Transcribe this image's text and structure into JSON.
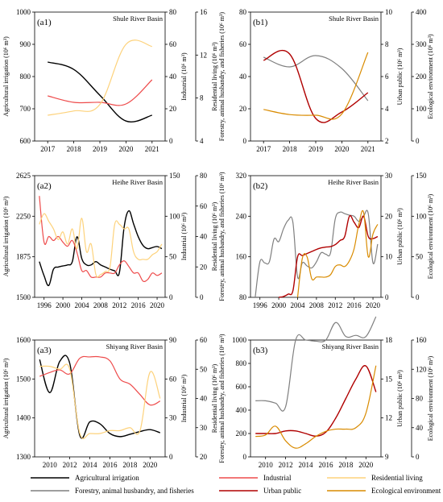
{
  "colors": {
    "agri": "#000000",
    "industrial": "#ee4b4b",
    "residential": "#fdd27b",
    "forestry": "#7f7f7f",
    "urban": "#b00000",
    "ecological": "#d98b00"
  },
  "legend": [
    {
      "key": "agri",
      "label": "Agricultural irrigation"
    },
    {
      "key": "industrial",
      "label": "Industrial"
    },
    {
      "key": "residential",
      "label": "Residential living"
    },
    {
      "key": "forestry",
      "label": "Forestry, animal husbandry, and fisheries"
    },
    {
      "key": "urban",
      "label": "Urban public"
    },
    {
      "key": "ecological",
      "label": "Ecological environment"
    }
  ],
  "chart_data": [
    {
      "id": "a1",
      "type": "line",
      "panel_label": "(a1)",
      "title": "Shule River Basin",
      "x": [
        2017,
        2018,
        2019,
        2020,
        2021
      ],
      "xlim": [
        2016.5,
        2021.5
      ],
      "xticks": [
        2017,
        2018,
        2019,
        2020,
        2021
      ],
      "axes": [
        {
          "id": "l1",
          "label": "Agricultural irrigation (10⁶ m³)",
          "ylim": [
            600,
            1000
          ],
          "ticks": [
            600,
            700,
            800,
            900,
            1000
          ]
        },
        {
          "id": "r1",
          "label": "Industrial (10⁶ m³)",
          "ylim": [
            0,
            80
          ],
          "ticks": [
            0,
            20,
            40,
            60,
            80
          ]
        },
        {
          "id": "r2",
          "label": "Residential living (10⁶ m³)",
          "ylim": [
            4,
            16
          ],
          "ticks": [
            4,
            8,
            12,
            16
          ]
        }
      ],
      "series": [
        {
          "key": "agri",
          "axis": "l1",
          "values": [
            845,
            822,
            742,
            662,
            680
          ]
        },
        {
          "key": "industrial",
          "axis": "r1",
          "values": [
            28,
            24,
            24,
            23,
            38
          ]
        },
        {
          "key": "residential",
          "axis": "r2",
          "values": [
            6.4,
            6.8,
            7.4,
            13.0,
            12.8
          ]
        }
      ]
    },
    {
      "id": "b1",
      "type": "line",
      "panel_label": "(b1)",
      "title": "Shule River Basin",
      "x": [
        2017,
        2018,
        2019,
        2020,
        2021
      ],
      "xlim": [
        2016.5,
        2021.5
      ],
      "xticks": [
        2017,
        2018,
        2019,
        2020,
        2021
      ],
      "axes": [
        {
          "id": "l1",
          "label": "Forestry, animal husbandry, and fisheries (10⁶ m³)",
          "ylim": [
            0,
            80
          ],
          "ticks": [
            0,
            20,
            40,
            60,
            80
          ]
        },
        {
          "id": "r1",
          "label": "Urban public (10⁶ m³)",
          "ylim": [
            2,
            10
          ],
          "ticks": [
            2,
            4,
            6,
            8,
            10
          ]
        },
        {
          "id": "r2",
          "label": "Ecological environment (10⁶ m³)",
          "ylim": [
            0,
            400
          ],
          "ticks": [
            0,
            100,
            200,
            300,
            400
          ]
        }
      ],
      "series": [
        {
          "key": "forestry",
          "axis": "l1",
          "values": [
            52,
            46,
            53,
            45,
            25
          ]
        },
        {
          "key": "urban",
          "axis": "r1",
          "values": [
            7.0,
            7.4,
            3.4,
            3.8,
            5.0
          ]
        },
        {
          "key": "ecological",
          "axis": "r2",
          "values": [
            98,
            82,
            80,
            84,
            275
          ]
        }
      ]
    },
    {
      "id": "a2",
      "type": "line",
      "panel_label": "(a2)",
      "title": "Heihe River Basin",
      "x": [
        1995,
        1996,
        1997,
        1998,
        1999,
        2000,
        2001,
        2002,
        2003,
        2004,
        2005,
        2006,
        2007,
        2008,
        2009,
        2010,
        2011,
        2012,
        2013,
        2014,
        2015,
        2016,
        2017,
        2018,
        2019,
        2020,
        2021
      ],
      "xlim": [
        1994,
        2021.7
      ],
      "xticks": [
        1996,
        2000,
        2004,
        2008,
        2012,
        2016,
        2020
      ],
      "axes": [
        {
          "id": "l1",
          "label": "Agricultural irrigation (10⁶ m³)",
          "ylim": [
            1500,
            2625
          ],
          "ticks": [
            1500,
            1875,
            2250,
            2625
          ]
        },
        {
          "id": "r1",
          "label": "Industrial (10⁶ m³)",
          "ylim": [
            0,
            150
          ],
          "ticks": [
            0,
            50,
            100,
            150
          ]
        },
        {
          "id": "r2",
          "label": "Residential living (10⁶ m³)",
          "ylim": [
            0,
            80
          ],
          "ticks": [
            0,
            20,
            40,
            60,
            80
          ]
        }
      ],
      "series": [
        {
          "key": "agri",
          "axis": "l1",
          "values": [
            1830,
            1700,
            1610,
            1760,
            1780,
            1790,
            1800,
            1830,
            2060,
            1860,
            1800,
            1800,
            1830,
            1800,
            1780,
            1760,
            1745,
            1730,
            2150,
            2300,
            2180,
            2060,
            1980,
            1950,
            1960,
            1970,
            1950
          ]
        },
        {
          "key": "industrial",
          "axis": "r1",
          "values": [
            125,
            68,
            75,
            70,
            75,
            68,
            63,
            70,
            55,
            33,
            33,
            25,
            25,
            25,
            30,
            30,
            30,
            40,
            45,
            38,
            30,
            30,
            20,
            22,
            30,
            27,
            30
          ]
        },
        {
          "key": "residential",
          "axis": "r2",
          "values": [
            48,
            55,
            50,
            45,
            38,
            43,
            35,
            45,
            32,
            52,
            30,
            35,
            15,
            15,
            17,
            20,
            48,
            48,
            45,
            45,
            30,
            25,
            25,
            25,
            28,
            30,
            35
          ]
        }
      ]
    },
    {
      "id": "b2",
      "type": "line",
      "panel_label": "(b2)",
      "title": "Heihe River Basin",
      "x": [
        1995,
        1996,
        1997,
        1998,
        1999,
        2000,
        2001,
        2002,
        2003,
        2004,
        2005,
        2006,
        2007,
        2008,
        2009,
        2010,
        2011,
        2012,
        2013,
        2014,
        2015,
        2016,
        2017,
        2018,
        2019,
        2020,
        2021
      ],
      "xlim": [
        1994,
        2021.7
      ],
      "xticks": [
        1996,
        2000,
        2004,
        2008,
        2012,
        2016,
        2020
      ],
      "axes": [
        {
          "id": "l1",
          "label": "Forestry, animal husbandry, and fisheries (10⁶ m³)",
          "ylim": [
            80,
            320
          ],
          "ticks": [
            80,
            160,
            240,
            320
          ]
        },
        {
          "id": "r1",
          "label": "Urban public (10⁶ m³)",
          "ylim": [
            0,
            30
          ],
          "ticks": [
            0,
            10,
            20,
            30
          ]
        },
        {
          "id": "r2",
          "label": "Ecological environment (10⁶ m³)",
          "ylim": [
            0,
            150
          ],
          "ticks": [
            0,
            50,
            100,
            150
          ]
        }
      ],
      "series": [
        {
          "key": "forestry",
          "axis": "l1",
          "values": [
            80,
            150,
            148,
            150,
            195,
            190,
            215,
            232,
            228,
            120,
            148,
            142,
            138,
            150,
            168,
            165,
            168,
            235,
            248,
            245,
            242,
            240,
            230,
            240,
            245,
            148,
            185
          ]
        },
        {
          "key": "urban",
          "axis": "r1",
          "values": [
            null,
            null,
            null,
            null,
            null,
            0.0,
            0.2,
            0.8,
            1.6,
            10.0,
            10.3,
            10.8,
            11.3,
            11.8,
            12.2,
            12.4,
            12.5,
            13.0,
            14.0,
            15.0,
            20.0,
            18.5,
            17.2,
            20.0,
            15.0,
            14.5,
            15.0
          ]
        },
        {
          "key": "ecological",
          "axis": "r2",
          "values": [
            null,
            null,
            null,
            null,
            null,
            null,
            null,
            null,
            null,
            0.0,
            48,
            50,
            23,
            25,
            25,
            25,
            28,
            38,
            40,
            38,
            45,
            60,
            90,
            105,
            50,
            78,
            90
          ]
        }
      ]
    },
    {
      "id": "a3",
      "type": "line",
      "panel_label": "(a3)",
      "title": "Shiyang River Basin",
      "x": [
        2009,
        2010,
        2011,
        2012,
        2013,
        2014,
        2015,
        2016,
        2017,
        2018,
        2019,
        2020,
        2021
      ],
      "xlim": [
        2008.5,
        2021.5
      ],
      "xticks": [
        2010,
        2012,
        2014,
        2016,
        2018,
        2020
      ],
      "axes": [
        {
          "id": "l1",
          "label": "Agricultural irrigation (10⁶ m³)",
          "ylim": [
            1300,
            1600
          ],
          "ticks": [
            1300,
            1400,
            1500,
            1600
          ]
        },
        {
          "id": "r1",
          "label": "Industrial (10⁶ m³)",
          "ylim": [
            0,
            90
          ],
          "ticks": [
            0,
            30,
            60,
            90
          ]
        },
        {
          "id": "r2",
          "label": "Residential living (10⁶ m³)",
          "ylim": [
            20,
            60
          ],
          "ticks": [
            20,
            30,
            40,
            50,
            60
          ]
        }
      ],
      "series": [
        {
          "key": "agri",
          "axis": "l1",
          "values": [
            1550,
            1465,
            1545,
            1540,
            1355,
            1390,
            1385,
            1360,
            1352,
            1358,
            1365,
            1370,
            1362
          ]
        },
        {
          "key": "industrial",
          "axis": "r1",
          "values": [
            62,
            65,
            67,
            64,
            76,
            77,
            77,
            74,
            60,
            56,
            48,
            40,
            43
          ]
        },
        {
          "key": "residential",
          "axis": "r2",
          "values": [
            51,
            51,
            50,
            50,
            28,
            28,
            28,
            29,
            29,
            30,
            29,
            49,
            40
          ]
        }
      ]
    },
    {
      "id": "b3",
      "type": "line",
      "panel_label": "(b3)",
      "title": "Shiyang River Basin",
      "x": [
        2009,
        2010,
        2011,
        2012,
        2013,
        2014,
        2015,
        2016,
        2017,
        2018,
        2019,
        2020,
        2021
      ],
      "xlim": [
        2008.5,
        2021.5
      ],
      "xticks": [
        2010,
        2012,
        2014,
        2016,
        2018,
        2020
      ],
      "axes": [
        {
          "id": "l1",
          "label": "Forestry, animal husbandry, and fisheries (10⁶ m³)",
          "ylim": [
            0,
            1000
          ],
          "ticks": [
            0,
            200,
            400,
            600,
            800,
            1000
          ]
        },
        {
          "id": "r1",
          "label": "Urban public (10⁶ m³)",
          "ylim": [
            9,
            18
          ],
          "ticks": [
            9,
            12,
            15,
            18
          ]
        },
        {
          "id": "r2",
          "label": "Ecological environment (10⁶ m³)",
          "ylim": [
            0,
            160
          ],
          "ticks": [
            0,
            40,
            80,
            120,
            160
          ]
        }
      ],
      "series": [
        {
          "key": "forestry",
          "axis": "l1",
          "values": [
            480,
            480,
            460,
            430,
            1000,
            1000,
            990,
            1000,
            1150,
            1030,
            1040,
            1030,
            1200
          ]
        },
        {
          "key": "urban",
          "axis": "r1",
          "values": [
            10.8,
            10.8,
            10.8,
            11.0,
            11.0,
            10.8,
            10.6,
            10.9,
            12.0,
            13.5,
            15.0,
            16.0,
            14.0
          ]
        },
        {
          "key": "ecological",
          "axis": "r2",
          "values": [
            28,
            30,
            42,
            22,
            12,
            18,
            28,
            35,
            38,
            38,
            40,
            60,
            125
          ]
        }
      ]
    }
  ]
}
